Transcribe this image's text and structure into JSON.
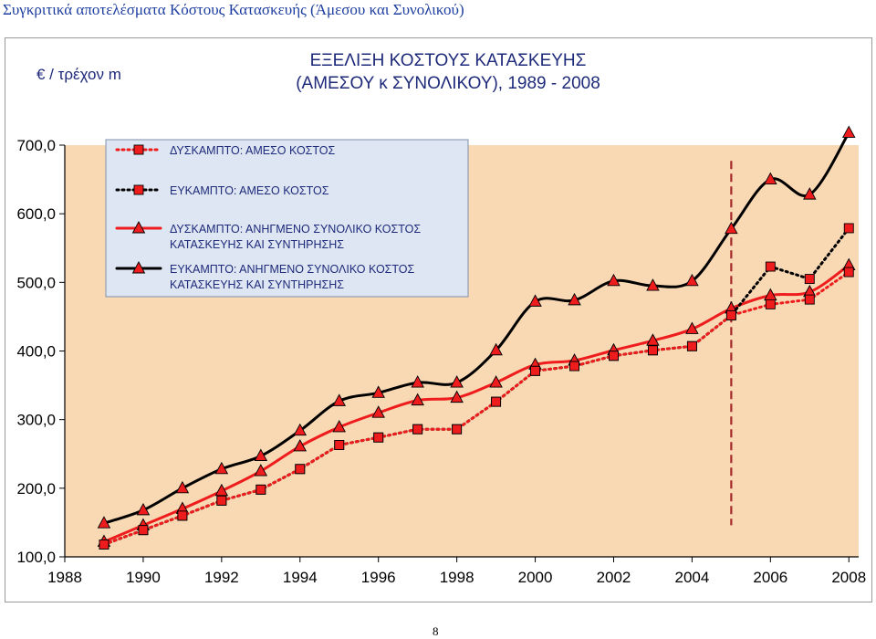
{
  "page": {
    "header": "Συγκριτικά αποτελέσματα Κόστους Κατασκευής (Άμεσου και Συνολικού)",
    "page_number": "8"
  },
  "colors": {
    "plot_bg": "#f9d9b4",
    "red": "#ee1c1c",
    "dark_red": "#c00000",
    "black": "#000000",
    "vline": "#a52a2a"
  },
  "chart_data": {
    "type": "line",
    "title": [
      "ΕΞΕΛΙΞΗ ΚΟΣΤΟΥΣ ΚΑΤΑΣΚΕΥΗΣ",
      "(ΑΜΕΣΟΥ κ ΣΥΝΟΛΙΚΟΥ), 1989 - 2008"
    ],
    "ylabel": "€ / τρέχον m",
    "xlim": [
      1988,
      2008.25
    ],
    "ylim": [
      100,
      700
    ],
    "x_ticks": [
      1988,
      1990,
      1992,
      1994,
      1996,
      1998,
      2000,
      2002,
      2004,
      2006,
      2008
    ],
    "x_tick_labels": [
      "1988",
      "1990",
      "1992",
      "1994",
      "1996",
      "1998",
      "2000",
      "2002",
      "2004",
      "2006",
      "2008"
    ],
    "y_ticks": [
      100,
      200,
      300,
      400,
      500,
      600,
      700
    ],
    "y_tick_labels": [
      "100,0",
      "200,0",
      "300,0",
      "400,0",
      "500,0",
      "600,0",
      "700,0"
    ],
    "grid": false,
    "legend_position": "top-left",
    "x": [
      1989,
      1990,
      1991,
      1992,
      1993,
      1994,
      1995,
      1996,
      1997,
      1998,
      1999,
      2000,
      2001,
      2002,
      2003,
      2004,
      2005,
      2006,
      2007,
      2008
    ],
    "series": [
      {
        "name": "ΔΥΣΚΑΜΠΤΟ: ΑΜΕΣΟ ΚΟΣΤΟΣ",
        "style": "dotted-red-square",
        "values": [
          118,
          139,
          160,
          182,
          198,
          228,
          263,
          274,
          286,
          286,
          326,
          371,
          378,
          393,
          401,
          407,
          452,
          468,
          475,
          515
        ]
      },
      {
        "name": "ΕΥΚΑΜΠΤΟ: ΑΜΕΣΟ ΚΟΣΤΟΣ",
        "style": "dotted-black-square",
        "values": [
          118,
          139,
          160,
          182,
          198,
          228,
          263,
          274,
          286,
          286,
          326,
          371,
          378,
          393,
          401,
          407,
          452,
          523,
          505,
          579
        ]
      },
      {
        "name": "ΔΥΣΚΑΜΠΤΟ: ΑΝΗΓΜΕΝΟ ΣΥΝΟΛΙΚΟ ΚΟΣΤΟΣ ΚΑΤΑΣΚΕΥΗΣ ΚΑΙ ΣΥΝΤΗΡΗΣΗΣ",
        "style": "solid-red-triangle",
        "values": [
          122,
          146,
          170,
          196,
          225,
          261,
          289,
          310,
          328,
          332,
          354,
          380,
          386,
          401,
          415,
          432,
          462,
          481,
          486,
          525
        ]
      },
      {
        "name": "ΕΥΚΑΜΠΤΟ: ΑΝΗΓΜΕΝΟ ΣΥΝΟΛΙΚΟ ΚΟΣΤΟΣ ΚΑΤΑΣΚΕΥΗΣ ΚΑΙ ΣΥΝΤΗΡΗΣΗΣ",
        "style": "solid-black-triangle",
        "values": [
          149,
          168,
          200,
          228,
          247,
          284,
          327,
          339,
          354,
          354,
          401,
          472,
          474,
          502,
          495,
          502,
          578,
          650,
          628,
          718
        ]
      }
    ]
  }
}
